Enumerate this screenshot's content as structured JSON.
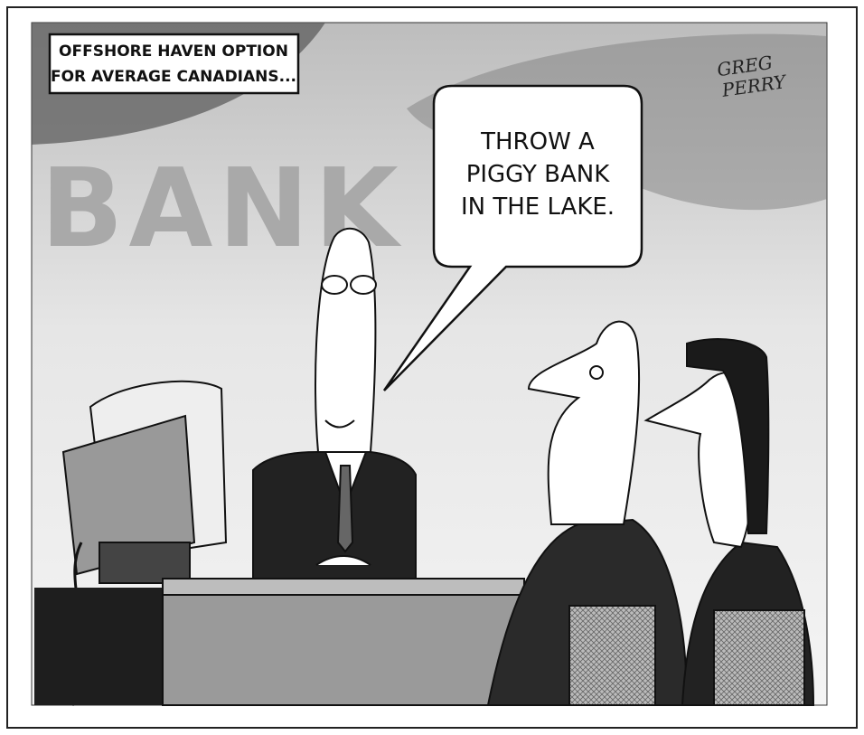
{
  "caption": {
    "lines": [
      "OFFSHORE HAVEN OPTION",
      "FOR AVERAGE CANADIANS..."
    ]
  },
  "background_sign": "BANK",
  "speech_bubble": {
    "lines": [
      "THROW A",
      "PIGGY BANK",
      "IN THE LAKE."
    ]
  },
  "signature": {
    "lines": [
      "GREG",
      "PERRY"
    ]
  }
}
